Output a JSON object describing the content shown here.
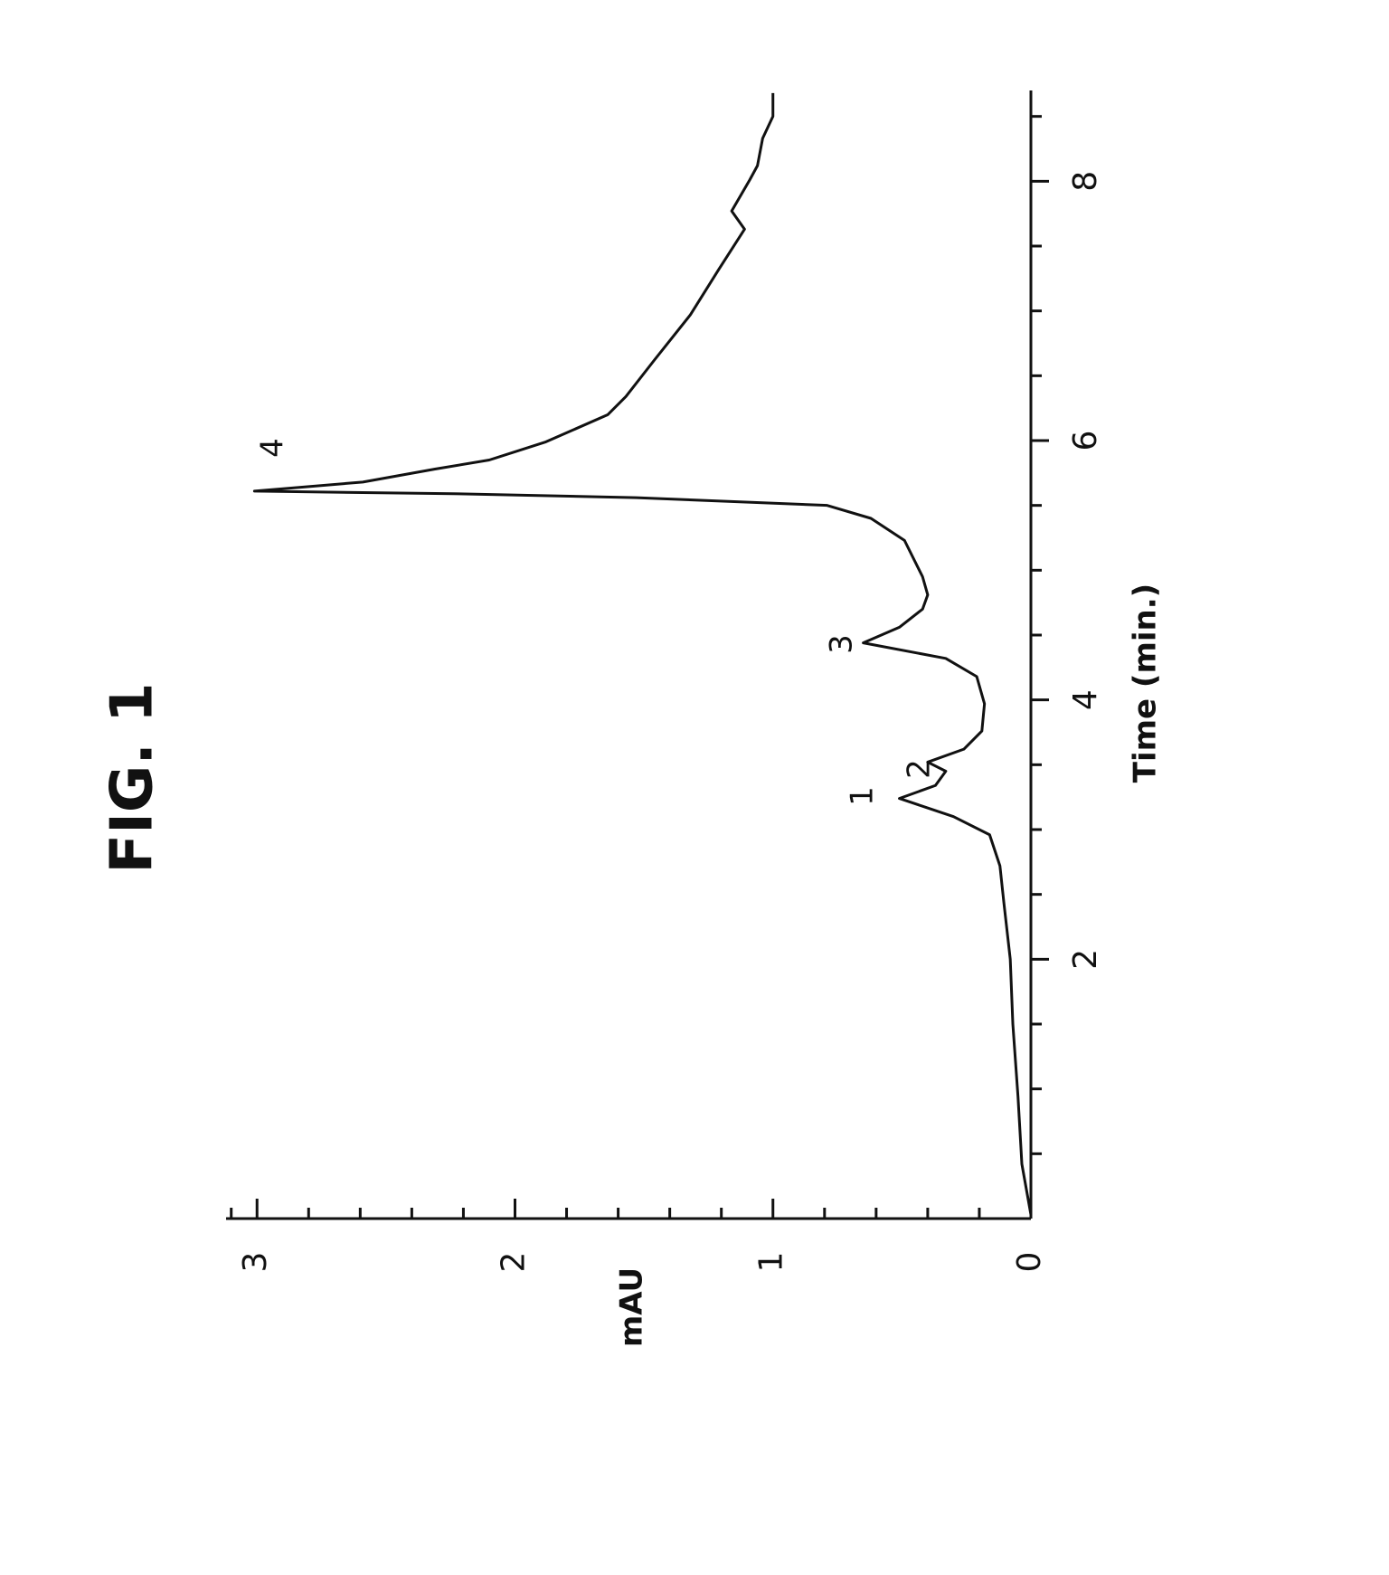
{
  "chart_data": {
    "type": "line",
    "title": "FIG. 1",
    "x_label": "Time (min.)",
    "y_label": "mAU",
    "xlim": [
      0,
      8.7
    ],
    "ylim": [
      0,
      3.12
    ],
    "xticks": [
      2,
      4,
      6,
      8
    ],
    "yticks": [
      0,
      1,
      2,
      3
    ],
    "xminorticks": [
      0.5,
      1,
      1.5,
      2.5,
      3,
      3.5,
      4.5,
      5,
      5.5,
      6.5,
      7,
      7.5,
      8.5
    ],
    "yminorticks": [
      0.2,
      0.4,
      0.6,
      0.8,
      1.2,
      1.4,
      1.6,
      1.8,
      2.2,
      2.4,
      2.6,
      2.8,
      3.1
    ],
    "rotation": -90,
    "annotations": [
      "1",
      "2",
      "3",
      "4"
    ],
    "series": [
      {
        "color": "#111111",
        "x": [
          0.03,
          0.42,
          0.94,
          1.5,
          2.0,
          2.44,
          2.72,
          2.96,
          3.1,
          3.24,
          3.34,
          3.45,
          3.52,
          3.62,
          3.76,
          3.97,
          4.18,
          4.32,
          4.44,
          4.56,
          4.7,
          4.81,
          4.95,
          5.23,
          5.4,
          5.5,
          5.56,
          5.59,
          5.61,
          5.68,
          5.78,
          5.85,
          5.99,
          6.2,
          6.34,
          6.62,
          6.97,
          7.32,
          7.63,
          7.77,
          8.01,
          8.12,
          8.33,
          8.5,
          8.68
        ],
        "values": [
          0,
          0.035,
          0.05,
          0.07,
          0.08,
          0.105,
          0.12,
          0.16,
          0.3,
          0.51,
          0.37,
          0.33,
          0.4,
          0.26,
          0.19,
          0.18,
          0.21,
          0.33,
          0.65,
          0.51,
          0.42,
          0.4,
          0.42,
          0.49,
          0.62,
          0.79,
          1.53,
          2.24,
          3.01,
          2.59,
          2.31,
          2.1,
          1.88,
          1.64,
          1.57,
          1.46,
          1.32,
          1.21,
          1.11,
          1.16,
          1.09,
          1.06,
          1.04,
          1.0,
          1.0
        ]
      }
    ]
  }
}
